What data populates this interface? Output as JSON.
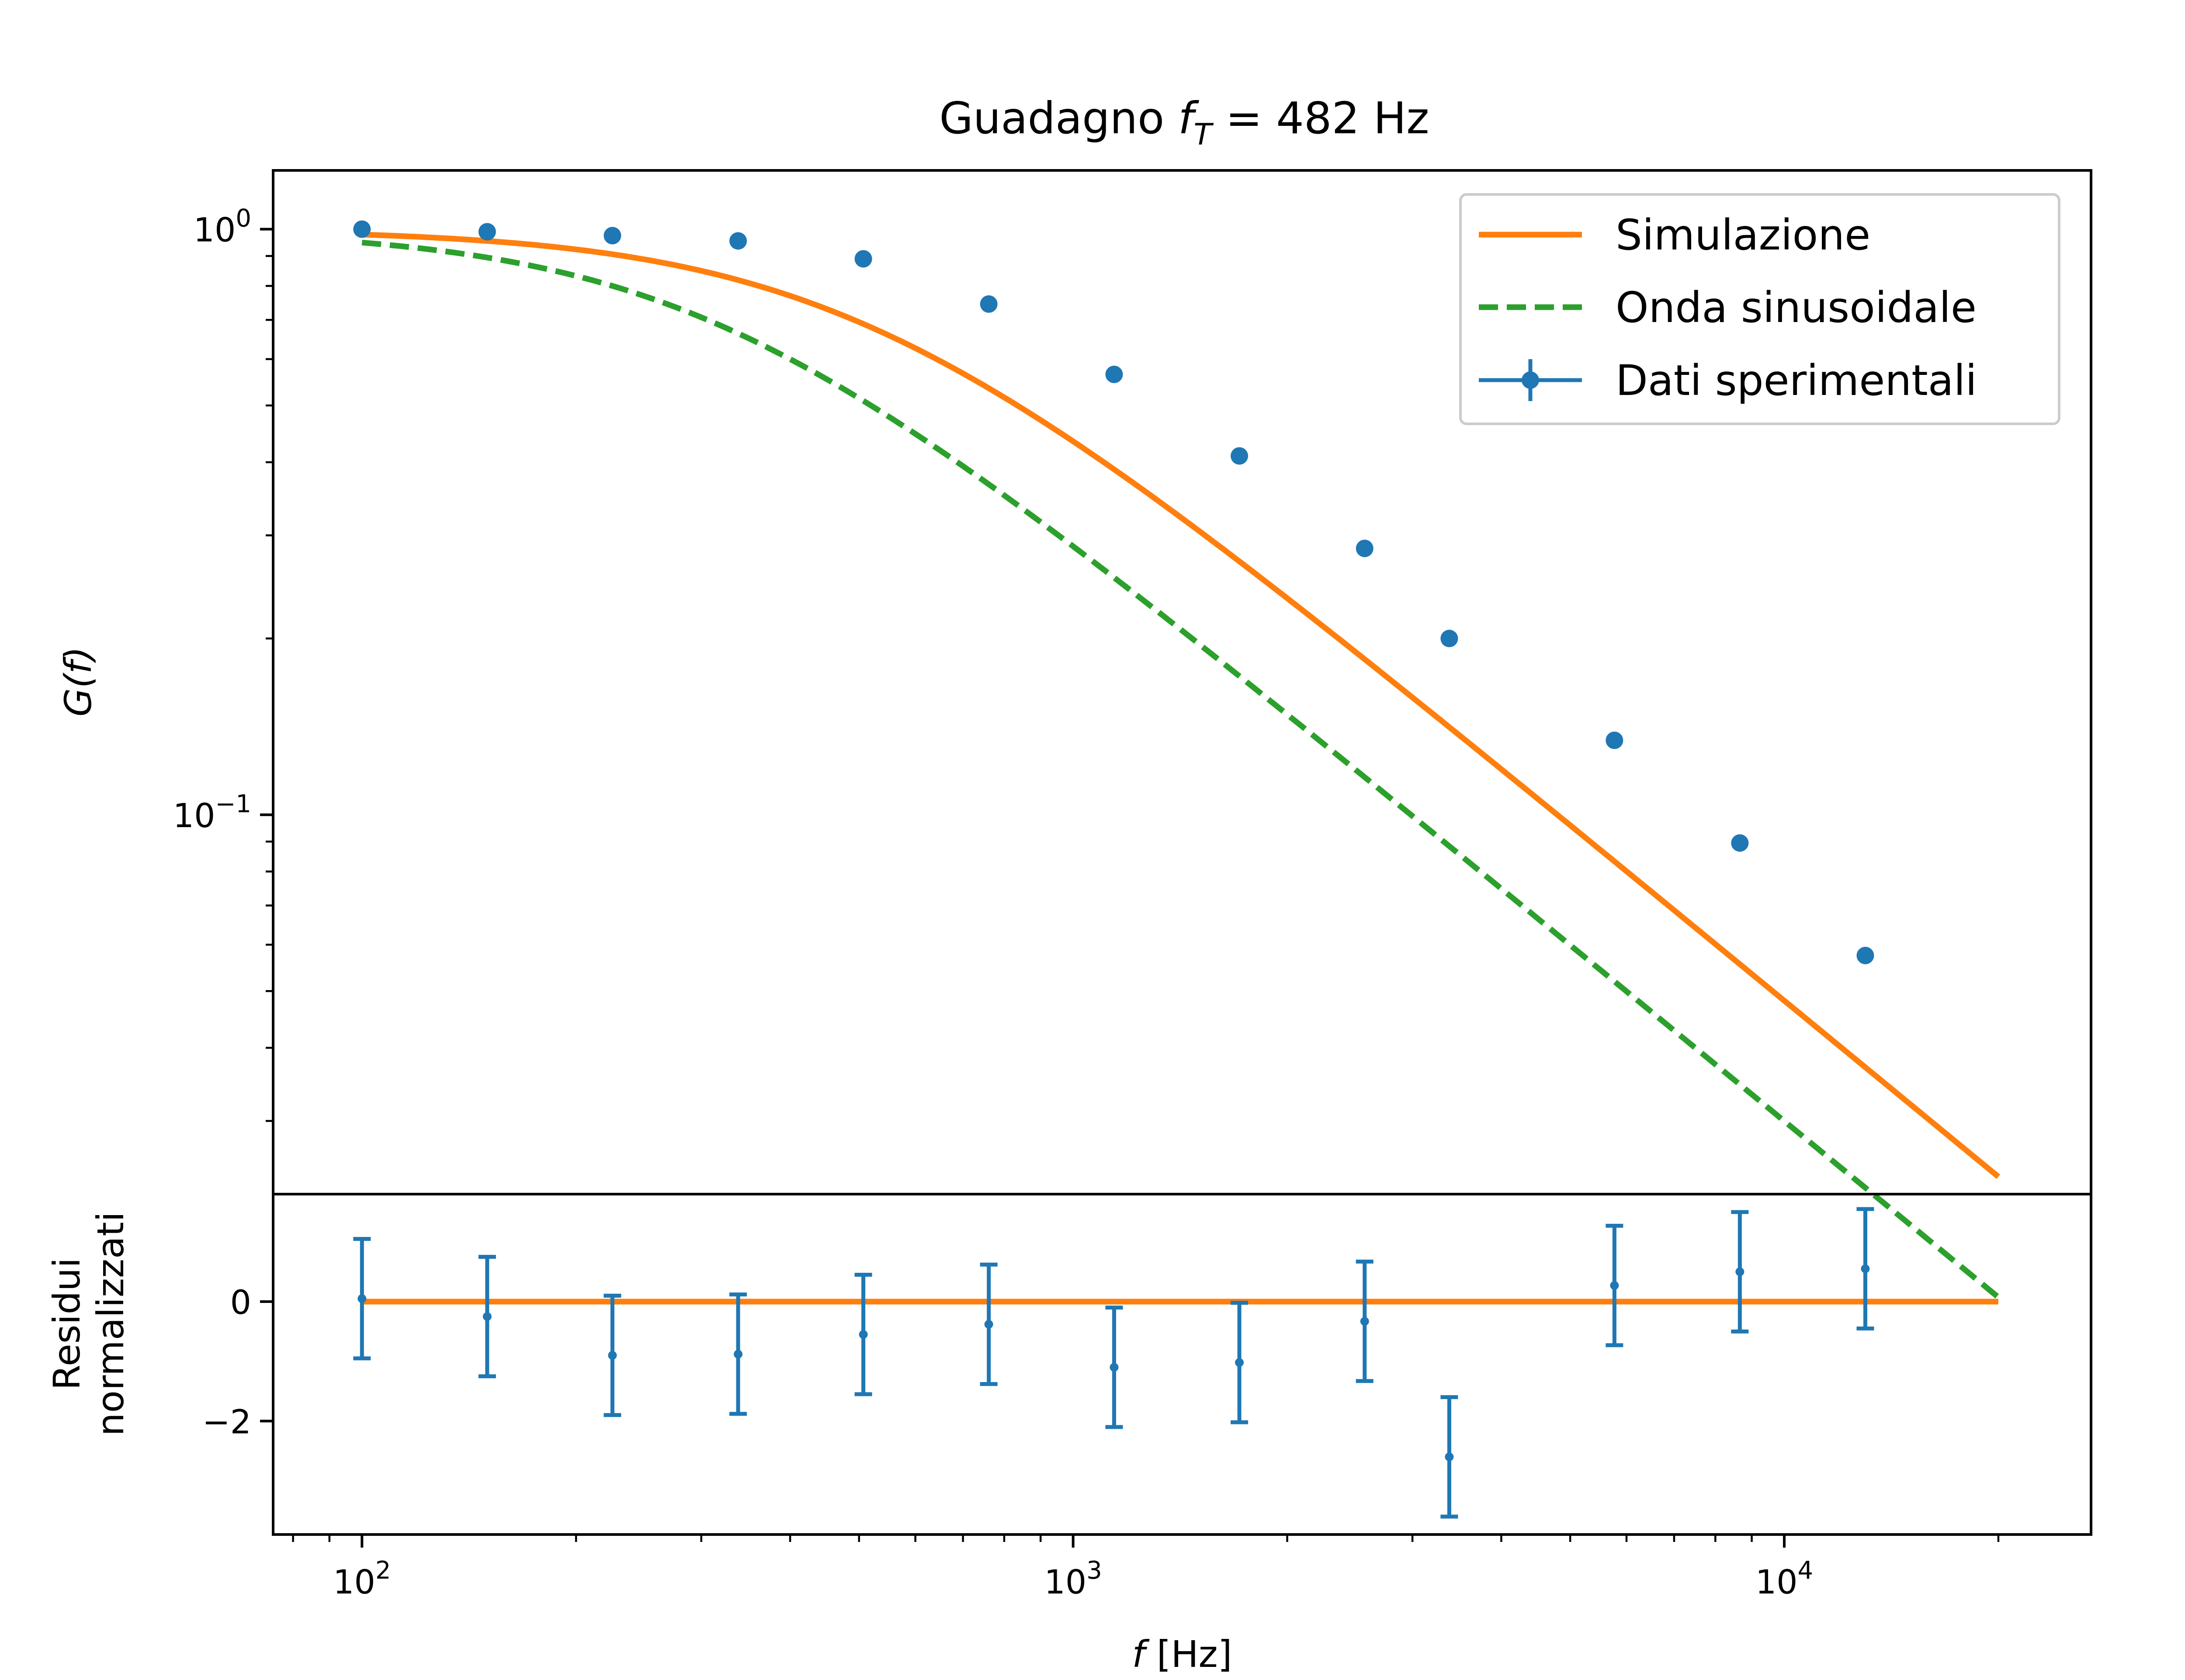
{
  "chart_data": {
    "type": "scatter",
    "title": "Guadagno f_T = 482 Hz",
    "title_parts": {
      "prefix": "Guadagno ",
      "var": "f",
      "sub": "T",
      "suffix": " = 482 Hz"
    },
    "colors": {
      "data": "#1f77b4",
      "simulation": "#ff7f0e",
      "sine": "#2ca02c"
    },
    "x_scale": "log",
    "xlim": [
      75,
      27000
    ],
    "xlabel": {
      "var": "f",
      "rest": " [Hz]"
    },
    "x_ticks": [
      {
        "value": 100,
        "base": "10",
        "exp": "2"
      },
      {
        "value": 1000,
        "base": "10",
        "exp": "3"
      },
      {
        "value": 10000,
        "base": "10",
        "exp": "4"
      }
    ],
    "top_panel": {
      "y_scale": "log",
      "ylim": [
        0.0225,
        1.26
      ],
      "ylabel": "G(f)",
      "y_ticks": [
        {
          "value": 1,
          "base": "10",
          "exp": "0"
        },
        {
          "value": 0.1,
          "base": "10",
          "exp": "−1"
        }
      ],
      "legend": {
        "position": "top-right",
        "entries": [
          "Simulazione",
          "Onda sinusoidale",
          "Dati sperimentali"
        ]
      },
      "series": [
        {
          "name": "Simulazione",
          "kind": "line",
          "style": "solid",
          "model": "first-order low-pass",
          "f_T": 482,
          "x_range": [
            100,
            20000
          ]
        },
        {
          "name": "Onda sinusoidale",
          "kind": "line",
          "style": "dashed",
          "model": "first-order low-pass",
          "f_T": 300,
          "x_range": [
            100,
            20000
          ]
        },
        {
          "name": "Dati sperimentali",
          "kind": "errorbar",
          "x": [
            100,
            150,
            225,
            338,
            507,
            761,
            1142,
            1713,
            2570,
            3380,
            5770,
            8660,
            13000
          ],
          "y": [
            1.0,
            0.99,
            0.975,
            0.955,
            0.89,
            0.745,
            0.565,
            0.41,
            0.285,
            0.2,
            0.134,
            0.0895,
            0.0575
          ],
          "yerr": [
            0.005,
            0.005,
            0.005,
            0.005,
            0.005,
            0.005,
            0.005,
            0.005,
            0.004,
            0.003,
            0.002,
            0.002,
            0.001
          ]
        }
      ]
    },
    "bottom_panel": {
      "ylabel_lines": [
        "Residui",
        "normalizzati"
      ],
      "ylim": [
        -3.9,
        1.8
      ],
      "y_ticks": [
        {
          "value": 0,
          "label": "0"
        },
        {
          "value": -2,
          "label": "−2"
        }
      ],
      "zero_line": {
        "x_range": [
          100,
          20000
        ],
        "y": 0
      },
      "series": [
        {
          "name": "Residui normalizzati",
          "kind": "errorbar",
          "x": [
            100,
            150,
            225,
            338,
            507,
            761,
            1142,
            1713,
            2570,
            3380,
            5770,
            8660,
            13000
          ],
          "y": [
            0.05,
            -0.25,
            -0.9,
            -0.88,
            -0.55,
            -0.38,
            -1.1,
            -1.02,
            -0.33,
            -2.6,
            0.27,
            0.5,
            0.55
          ],
          "yerr": [
            1.0,
            1.0,
            1.0,
            1.0,
            1.0,
            1.0,
            1.0,
            1.0,
            1.0,
            1.0,
            1.0,
            1.0,
            1.0
          ]
        }
      ]
    }
  }
}
